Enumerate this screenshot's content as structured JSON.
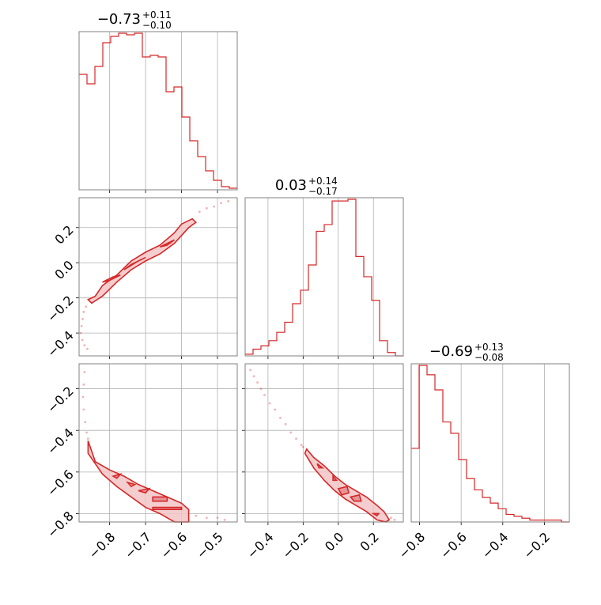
{
  "chart_data": {
    "type": "corner",
    "color": "#d62728",
    "fill_color": "#f2c4c6",
    "grid": true,
    "panels": [
      {
        "panel": "hist-0",
        "type": "histogram",
        "title": {
          "median": "−0.73",
          "upper": "+0.11",
          "lower": "−0.10"
        },
        "xlim": [
          -0.885,
          -0.445
        ],
        "xticks": [
          -0.8,
          -0.7,
          -0.6,
          -0.5
        ],
        "bin_edges": [
          -0.885,
          -0.863,
          -0.841,
          -0.819,
          -0.797,
          -0.775,
          -0.753,
          -0.731,
          -0.709,
          -0.687,
          -0.665,
          -0.643,
          -0.621,
          -0.599,
          -0.577,
          -0.555,
          -0.533,
          -0.511,
          -0.489,
          -0.467,
          -0.445
        ],
        "counts": [
          0.73,
          0.67,
          0.78,
          0.93,
          0.97,
          0.99,
          0.98,
          0.99,
          0.84,
          0.85,
          0.84,
          0.62,
          0.65,
          0.46,
          0.31,
          0.21,
          0.12,
          0.06,
          0.02,
          0.01
        ]
      },
      {
        "panel": "hist-1",
        "type": "histogram",
        "title": {
          "median": "0.03",
          "upper": "+0.14",
          "lower": "−0.17"
        },
        "xlim": [
          -0.53,
          0.37
        ],
        "xticks": [
          -0.4,
          -0.2,
          0.0,
          0.2
        ],
        "xticklabels": [
          "−0.4",
          "−0.2",
          "0.0",
          "0.2"
        ],
        "bin_edges": [
          -0.53,
          -0.485,
          -0.44,
          -0.395,
          -0.35,
          -0.305,
          -0.26,
          -0.215,
          -0.17,
          -0.125,
          -0.08,
          -0.035,
          0.01,
          0.055,
          0.1,
          0.145,
          0.19,
          0.235,
          0.28,
          0.325,
          0.37
        ],
        "counts": [
          0.01,
          0.04,
          0.06,
          0.09,
          0.14,
          0.2,
          0.31,
          0.39,
          0.54,
          0.74,
          0.78,
          0.92,
          0.92,
          0.93,
          0.59,
          0.47,
          0.33,
          0.09,
          0.02,
          0.0
        ]
      },
      {
        "panel": "hist-2",
        "type": "histogram",
        "title": {
          "median": "−0.69",
          "upper": "+0.13",
          "lower": "−0.08"
        },
        "xlim": [
          -0.84,
          -0.08
        ],
        "xticks": [
          -0.8,
          -0.6,
          -0.4,
          -0.2
        ],
        "bin_edges": [
          -0.84,
          -0.802,
          -0.764,
          -0.726,
          -0.688,
          -0.65,
          -0.612,
          -0.574,
          -0.536,
          -0.498,
          -0.46,
          -0.422,
          -0.384,
          -0.346,
          -0.308,
          -0.27,
          -0.232,
          -0.194,
          -0.156,
          -0.118,
          -0.08
        ],
        "counts": [
          0.39,
          0.83,
          0.78,
          0.7,
          0.53,
          0.47,
          0.33,
          0.23,
          0.17,
          0.13,
          0.1,
          0.07,
          0.04,
          0.03,
          0.02,
          0.01,
          0.01,
          0.01,
          0.01,
          0.0
        ]
      },
      {
        "panel": "scatter-1-0",
        "type": "contour",
        "xlim": [
          -0.885,
          -0.445
        ],
        "ylim": [
          -0.53,
          0.37
        ],
        "yticks": [
          -0.4,
          -0.2,
          0.0,
          0.2
        ],
        "outer_contour": [
          [
            -0.86,
            -0.21
          ],
          [
            -0.84,
            -0.19
          ],
          [
            -0.82,
            -0.13
          ],
          [
            -0.78,
            -0.07
          ],
          [
            -0.74,
            0.01
          ],
          [
            -0.7,
            0.06
          ],
          [
            -0.66,
            0.1
          ],
          [
            -0.62,
            0.17
          ],
          [
            -0.6,
            0.22
          ],
          [
            -0.57,
            0.25
          ],
          [
            -0.56,
            0.23
          ],
          [
            -0.58,
            0.2
          ],
          [
            -0.62,
            0.11
          ],
          [
            -0.66,
            0.05
          ],
          [
            -0.7,
            0.01
          ],
          [
            -0.74,
            -0.04
          ],
          [
            -0.78,
            -0.11
          ],
          [
            -0.82,
            -0.19
          ],
          [
            -0.85,
            -0.23
          ]
        ],
        "inner_contours": [
          [
            [
              -0.82,
              -0.11
            ],
            [
              -0.79,
              -0.08
            ],
            [
              -0.77,
              -0.07
            ],
            [
              -0.8,
              -0.1
            ]
          ],
          [
            [
              -0.76,
              -0.04
            ],
            [
              -0.72,
              0.01
            ],
            [
              -0.7,
              0.03
            ],
            [
              -0.74,
              -0.01
            ]
          ],
          [
            [
              -0.66,
              0.09
            ],
            [
              -0.62,
              0.13
            ],
            [
              -0.64,
              0.1
            ]
          ]
        ],
        "points": [
          [
            -0.875,
            -0.32
          ],
          [
            -0.878,
            -0.36
          ],
          [
            -0.88,
            -0.4
          ],
          [
            -0.876,
            -0.44
          ],
          [
            -0.87,
            -0.47
          ],
          [
            -0.862,
            -0.49
          ],
          [
            -0.872,
            -0.28
          ],
          [
            -0.866,
            -0.25
          ],
          [
            -0.55,
            0.29
          ],
          [
            -0.53,
            0.31
          ],
          [
            -0.51,
            0.32
          ],
          [
            -0.49,
            0.34
          ],
          [
            -0.47,
            0.35
          ]
        ]
      },
      {
        "panel": "scatter-2-0",
        "type": "contour",
        "xlim": [
          -0.885,
          -0.445
        ],
        "ylim": [
          -0.84,
          -0.08
        ],
        "yticks": [
          -0.8,
          -0.6,
          -0.4,
          -0.2
        ],
        "outer_contour": [
          [
            -0.86,
            -0.45
          ],
          [
            -0.84,
            -0.55
          ],
          [
            -0.8,
            -0.59
          ],
          [
            -0.76,
            -0.62
          ],
          [
            -0.72,
            -0.66
          ],
          [
            -0.68,
            -0.69
          ],
          [
            -0.64,
            -0.72
          ],
          [
            -0.6,
            -0.75
          ],
          [
            -0.58,
            -0.78
          ],
          [
            -0.58,
            -0.84
          ],
          [
            -0.62,
            -0.84
          ],
          [
            -0.66,
            -0.8
          ],
          [
            -0.7,
            -0.77
          ],
          [
            -0.74,
            -0.72
          ],
          [
            -0.78,
            -0.67
          ],
          [
            -0.82,
            -0.61
          ],
          [
            -0.86,
            -0.51
          ]
        ],
        "inner_contours": [
          [
            [
              -0.79,
              -0.62
            ],
            [
              -0.77,
              -0.61
            ],
            [
              -0.78,
              -0.63
            ]
          ],
          [
            [
              -0.75,
              -0.65
            ],
            [
              -0.73,
              -0.66
            ],
            [
              -0.74,
              -0.67
            ]
          ],
          [
            [
              -0.72,
              -0.69
            ],
            [
              -0.69,
              -0.68
            ],
            [
              -0.7,
              -0.7
            ]
          ],
          [
            [
              -0.68,
              -0.72
            ],
            [
              -0.64,
              -0.72
            ],
            [
              -0.64,
              -0.74
            ],
            [
              -0.68,
              -0.74
            ]
          ],
          [
            [
              -0.68,
              -0.77
            ],
            [
              -0.6,
              -0.77
            ],
            [
              -0.6,
              -0.78
            ],
            [
              -0.68,
              -0.78
            ]
          ]
        ],
        "points": [
          [
            -0.87,
            -0.12
          ],
          [
            -0.872,
            -0.18
          ],
          [
            -0.874,
            -0.24
          ],
          [
            -0.872,
            -0.3
          ],
          [
            -0.868,
            -0.36
          ],
          [
            -0.864,
            -0.41
          ],
          [
            -0.86,
            -0.44
          ],
          [
            -0.56,
            -0.81
          ],
          [
            -0.53,
            -0.82
          ],
          [
            -0.5,
            -0.82
          ],
          [
            -0.48,
            -0.83
          ]
        ]
      },
      {
        "panel": "scatter-2-1",
        "type": "contour",
        "xlim": [
          -0.53,
          0.37
        ],
        "ylim": [
          -0.84,
          -0.08
        ],
        "outer_contour": [
          [
            -0.18,
            -0.49
          ],
          [
            -0.14,
            -0.53
          ],
          [
            -0.08,
            -0.57
          ],
          [
            -0.02,
            -0.62
          ],
          [
            0.04,
            -0.66
          ],
          [
            0.1,
            -0.69
          ],
          [
            0.16,
            -0.72
          ],
          [
            0.22,
            -0.76
          ],
          [
            0.26,
            -0.79
          ],
          [
            0.29,
            -0.83
          ],
          [
            0.27,
            -0.84
          ],
          [
            0.22,
            -0.83
          ],
          [
            0.16,
            -0.79
          ],
          [
            0.1,
            -0.76
          ],
          [
            0.04,
            -0.73
          ],
          [
            -0.02,
            -0.69
          ],
          [
            -0.08,
            -0.64
          ],
          [
            -0.14,
            -0.58
          ],
          [
            -0.19,
            -0.51
          ]
        ],
        "inner_contours": [
          [
            [
              -0.12,
              -0.56
            ],
            [
              -0.09,
              -0.58
            ],
            [
              -0.11,
              -0.58
            ]
          ],
          [
            [
              -0.03,
              -0.62
            ],
            [
              -0.01,
              -0.64
            ],
            [
              -0.03,
              -0.64
            ]
          ],
          [
            [
              0.0,
              -0.68
            ],
            [
              0.05,
              -0.67
            ],
            [
              0.06,
              -0.7
            ],
            [
              0.02,
              -0.71
            ]
          ],
          [
            [
              0.07,
              -0.72
            ],
            [
              0.12,
              -0.71
            ],
            [
              0.13,
              -0.74
            ],
            [
              0.09,
              -0.74
            ]
          ],
          [
            [
              0.2,
              -0.8
            ],
            [
              0.23,
              -0.8
            ],
            [
              0.22,
              -0.81
            ]
          ]
        ],
        "points": [
          [
            -0.5,
            -0.11
          ],
          [
            -0.48,
            -0.14
          ],
          [
            -0.46,
            -0.17
          ],
          [
            -0.44,
            -0.2
          ],
          [
            -0.42,
            -0.23
          ],
          [
            -0.39,
            -0.27
          ],
          [
            -0.36,
            -0.3
          ],
          [
            -0.33,
            -0.34
          ],
          [
            -0.3,
            -0.37
          ],
          [
            -0.27,
            -0.41
          ],
          [
            -0.24,
            -0.44
          ],
          [
            -0.21,
            -0.47
          ],
          [
            -0.2,
            -0.48
          ],
          [
            0.3,
            -0.82
          ],
          [
            0.32,
            -0.83
          ]
        ]
      }
    ],
    "bottom_xticklabels": {
      "col0": [
        "−0.8",
        "−0.7",
        "−0.6",
        "−0.5"
      ],
      "col1": [
        "−0.4",
        "−0.2",
        "0.0",
        "0.2"
      ],
      "col2": [
        "−0.8",
        "−0.6",
        "−0.4",
        "−0.2"
      ]
    },
    "left_yticklabels": {
      "row1": [
        "−0.4",
        "−0.2",
        "0.0",
        "0.2"
      ],
      "row2": [
        "−0.8",
        "−0.6",
        "−0.4",
        "−0.2"
      ]
    }
  }
}
